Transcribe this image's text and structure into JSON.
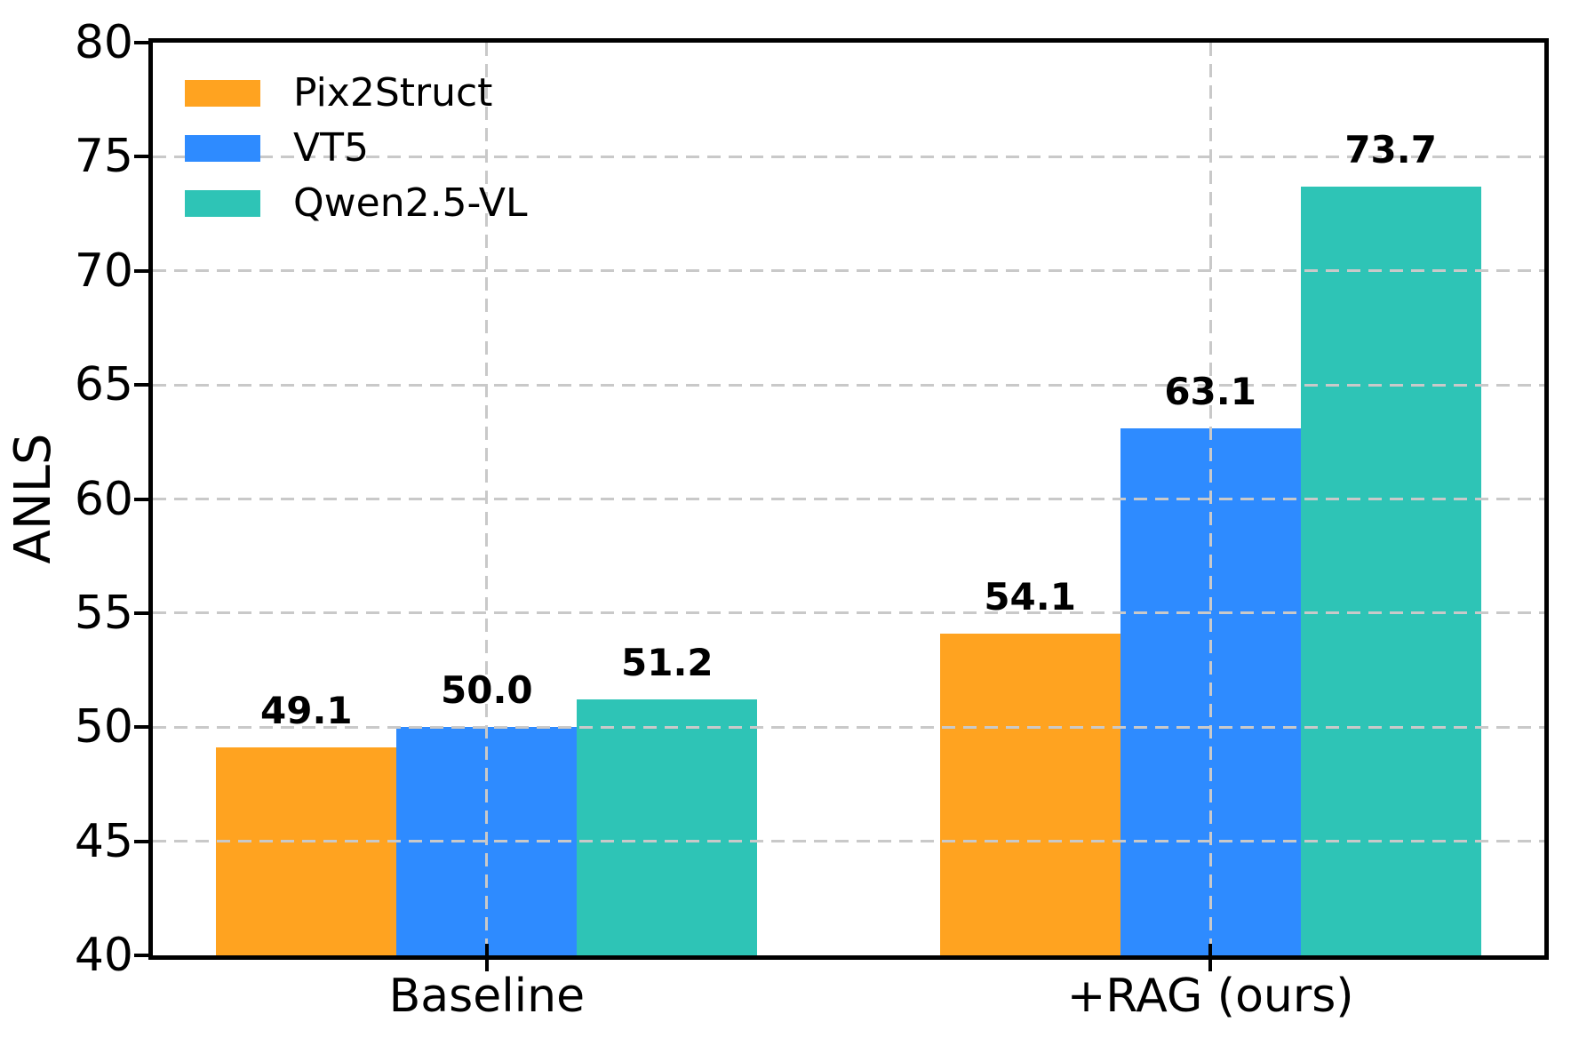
{
  "figure": {
    "background": "#FFFFFF"
  },
  "chart_data": {
    "type": "bar",
    "title": "",
    "xlabel": "",
    "ylabel": "ANLS",
    "categories": [
      "Baseline",
      "+RAG (ours)"
    ],
    "series": [
      {
        "name": "Pix2Struct",
        "color": "#FFA320",
        "values": [
          49.1,
          54.1
        ],
        "labels": [
          "49.1",
          "54.1"
        ]
      },
      {
        "name": "VT5",
        "color": "#2E8BFF",
        "values": [
          50.0,
          63.1
        ],
        "labels": [
          "50.0",
          "63.1"
        ]
      },
      {
        "name": "Qwen2.5-VL",
        "color": "#2EC4B6",
        "values": [
          51.2,
          73.7
        ],
        "labels": [
          "51.2",
          "73.7"
        ]
      }
    ],
    "ylim": [
      40,
      80
    ],
    "yticks": [
      40,
      45,
      50,
      55,
      60,
      65,
      70,
      75,
      80
    ],
    "grid": true,
    "grid_color": "#C9C9C9",
    "grid_style": "dashed",
    "legend_position": "upper-left",
    "axis_color": "#000000",
    "text_color": "#000000",
    "value_labels_bold": true
  }
}
